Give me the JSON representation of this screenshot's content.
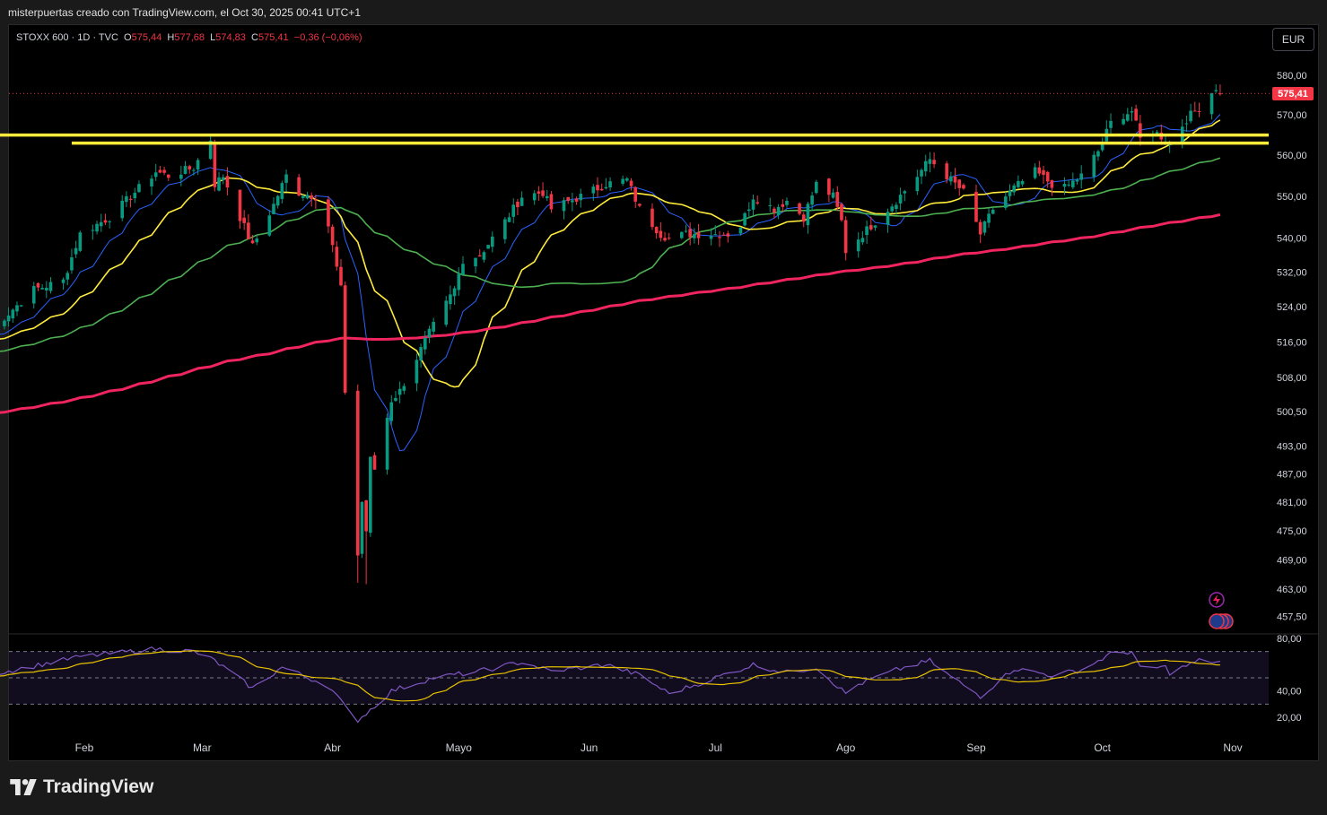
{
  "header": {
    "attribution": "misterpuertas creado con TradingView.com, el Oct 30, 2025 00:41 UTC+1"
  },
  "legend": {
    "symbol": "STOXX 600 · 1D · TVC",
    "open_label": "O",
    "open": "575,44",
    "high_label": "H",
    "high": "577,68",
    "low_label": "L",
    "low": "574,83",
    "close_label": "C",
    "close": "575,41",
    "change": "−0,36 (−0,06%)"
  },
  "currency": "EUR",
  "last_price_label": "575,41",
  "brand": "TradingView",
  "colors": {
    "background": "#000000",
    "frame": "#1a1a1a",
    "up_candle": "#089981",
    "down_candle": "#f23645",
    "sma_200": "#f0245e",
    "sma_50": "#4caf50",
    "sma_20": "#ffeb3b",
    "sma_10": "#2962ff",
    "resistance": "#ffeb3b",
    "rsi_line": "#7e57c2",
    "rsi_ma": "#e6c200"
  },
  "chart_data": {
    "type": "candlestick",
    "series_name": "STOXX 600",
    "interval": "1D",
    "currency": "EUR",
    "price_axis_ticks": [
      "580,00",
      "570,00",
      "560,00",
      "550,00",
      "540,00",
      "532,00",
      "524,00",
      "516,00",
      "508,00",
      "500,50",
      "493,00",
      "487,00",
      "481,00",
      "475,00",
      "469,00",
      "463,00",
      "457,50"
    ],
    "price_axis_values": [
      580,
      570,
      560,
      550,
      540,
      532,
      524,
      516,
      508,
      500.5,
      493,
      487,
      481,
      475,
      469,
      463,
      457.5
    ],
    "price_scale": "log",
    "time_axis_ticks": [
      "Feb",
      "Mar",
      "Abr",
      "Mayo",
      "Jun",
      "Jul",
      "Ago",
      "Sep",
      "Oct",
      "Nov"
    ],
    "time_axis_dates": [
      "2025-02-01",
      "2025-03-01",
      "2025-04-01",
      "2025-05-01",
      "2025-06-01",
      "2025-07-01",
      "2025-08-01",
      "2025-09-01",
      "2025-10-01",
      "2025-11-01"
    ],
    "anchors": [
      [
        "2025-01-09",
        518
      ],
      [
        "2025-01-20",
        528
      ],
      [
        "2025-01-27",
        530
      ],
      [
        "2025-01-31",
        541
      ],
      [
        "2025-02-07",
        545
      ],
      [
        "2025-02-14",
        552
      ],
      [
        "2025-02-18",
        556
      ],
      [
        "2025-02-21",
        555
      ],
      [
        "2025-02-27",
        557
      ],
      [
        "2025-03-03",
        564
      ],
      [
        "2025-03-04",
        553
      ],
      [
        "2025-03-06",
        555
      ],
      [
        "2025-03-10",
        545
      ],
      [
        "2025-03-13",
        538
      ],
      [
        "2025-03-18",
        548
      ],
      [
        "2025-03-21",
        555
      ],
      [
        "2025-03-24",
        551
      ],
      [
        "2025-03-28",
        550
      ],
      [
        "2025-03-31",
        543
      ],
      [
        "2025-04-03",
        528
      ],
      [
        "2025-04-04",
        505
      ],
      [
        "2025-04-07",
        470
      ],
      [
        "2025-04-08",
        481
      ],
      [
        "2025-04-09",
        475
      ],
      [
        "2025-04-10",
        490
      ],
      [
        "2025-04-11",
        488
      ],
      [
        "2025-04-15",
        503
      ],
      [
        "2025-04-17",
        505
      ],
      [
        "2025-04-24",
        518
      ],
      [
        "2025-04-30",
        528
      ],
      [
        "2025-05-02",
        535
      ],
      [
        "2025-05-06",
        536
      ],
      [
        "2025-05-12",
        544
      ],
      [
        "2025-05-16",
        550
      ],
      [
        "2025-05-21",
        551
      ],
      [
        "2025-05-23",
        547
      ],
      [
        "2025-05-30",
        550
      ],
      [
        "2025-06-05",
        553
      ],
      [
        "2025-06-10",
        554
      ],
      [
        "2025-06-13",
        547
      ],
      [
        "2025-06-18",
        541
      ],
      [
        "2025-06-20",
        540
      ],
      [
        "2025-06-24",
        541
      ],
      [
        "2025-06-30",
        541
      ],
      [
        "2025-07-04",
        541
      ],
      [
        "2025-07-07",
        543
      ],
      [
        "2025-07-10",
        550
      ],
      [
        "2025-07-15",
        547
      ],
      [
        "2025-07-18",
        549
      ],
      [
        "2025-07-22",
        545
      ],
      [
        "2025-07-25",
        553
      ],
      [
        "2025-07-29",
        550
      ],
      [
        "2025-07-31",
        544
      ],
      [
        "2025-08-01",
        537
      ],
      [
        "2025-08-04",
        540
      ],
      [
        "2025-08-07",
        543
      ],
      [
        "2025-08-13",
        549
      ],
      [
        "2025-08-18",
        555
      ],
      [
        "2025-08-21",
        559
      ],
      [
        "2025-08-25",
        555
      ],
      [
        "2025-08-29",
        551
      ],
      [
        "2025-09-02",
        541
      ],
      [
        "2025-09-05",
        547
      ],
      [
        "2025-09-10",
        552
      ],
      [
        "2025-09-15",
        556
      ],
      [
        "2025-09-19",
        553
      ],
      [
        "2025-09-22",
        552
      ],
      [
        "2025-09-26",
        555
      ],
      [
        "2025-09-30",
        561
      ],
      [
        "2025-10-03",
        568
      ],
      [
        "2025-10-06",
        570
      ],
      [
        "2025-10-08",
        571
      ],
      [
        "2025-10-10",
        564
      ],
      [
        "2025-10-13",
        566
      ],
      [
        "2025-10-16",
        564
      ],
      [
        "2025-10-17",
        563
      ],
      [
        "2025-10-21",
        569
      ],
      [
        "2025-10-24",
        572
      ],
      [
        "2025-10-28",
        577
      ],
      [
        "2025-10-29",
        575.41
      ]
    ],
    "last_candle": {
      "date": "2025-10-29",
      "open": 575.44,
      "high": 577.68,
      "low": 574.83,
      "close": 575.41,
      "change": -0.36,
      "change_pct": -0.06
    },
    "key_lows": [
      {
        "date": "2025-04-07",
        "low": 464.3
      },
      {
        "date": "2025-04-09",
        "low": 464.0
      }
    ],
    "moving_averages": [
      {
        "color": "#2962ff",
        "period": 10
      },
      {
        "color": "#ffeb3b",
        "period": 20
      },
      {
        "color": "#4caf50",
        "period": 50
      },
      {
        "color": "#f0245e",
        "period": 200
      }
    ],
    "horizontal_lines": [
      {
        "price": 565.0,
        "start": "2025-01-09"
      },
      {
        "price": 563.0,
        "start": "2025-01-29"
      }
    ],
    "rsi": {
      "axis_ticks": [
        "80,00",
        "40,00",
        "20,00"
      ],
      "axis_values": [
        80,
        40,
        20
      ],
      "upper_band": 70,
      "middle_band": 50,
      "lower_band": 30,
      "anchors": [
        [
          "2025-01-09",
          52
        ],
        [
          "2025-01-31",
          66
        ],
        [
          "2025-02-18",
          72
        ],
        [
          "2025-02-27",
          70
        ],
        [
          "2025-03-04",
          63
        ],
        [
          "2025-03-13",
          42
        ],
        [
          "2025-03-20",
          58
        ],
        [
          "2025-03-31",
          44
        ],
        [
          "2025-04-04",
          28
        ],
        [
          "2025-04-07",
          18
        ],
        [
          "2025-04-09",
          23
        ],
        [
          "2025-04-15",
          40
        ],
        [
          "2025-04-25",
          50
        ],
        [
          "2025-05-06",
          55
        ],
        [
          "2025-05-16",
          62
        ],
        [
          "2025-05-23",
          55
        ],
        [
          "2025-06-05",
          60
        ],
        [
          "2025-06-13",
          52
        ],
        [
          "2025-06-20",
          38
        ],
        [
          "2025-07-01",
          50
        ],
        [
          "2025-07-10",
          60
        ],
        [
          "2025-07-18",
          54
        ],
        [
          "2025-07-25",
          58
        ],
        [
          "2025-08-01",
          38
        ],
        [
          "2025-08-04",
          45
        ],
        [
          "2025-08-13",
          56
        ],
        [
          "2025-08-21",
          63
        ],
        [
          "2025-08-25",
          53
        ],
        [
          "2025-09-02",
          36
        ],
        [
          "2025-09-10",
          57
        ],
        [
          "2025-09-19",
          52
        ],
        [
          "2025-09-26",
          56
        ],
        [
          "2025-10-03",
          68
        ],
        [
          "2025-10-08",
          70
        ],
        [
          "2025-10-10",
          57
        ],
        [
          "2025-10-16",
          58
        ],
        [
          "2025-10-17",
          54
        ],
        [
          "2025-10-24",
          63
        ],
        [
          "2025-10-29",
          62
        ]
      ]
    }
  }
}
